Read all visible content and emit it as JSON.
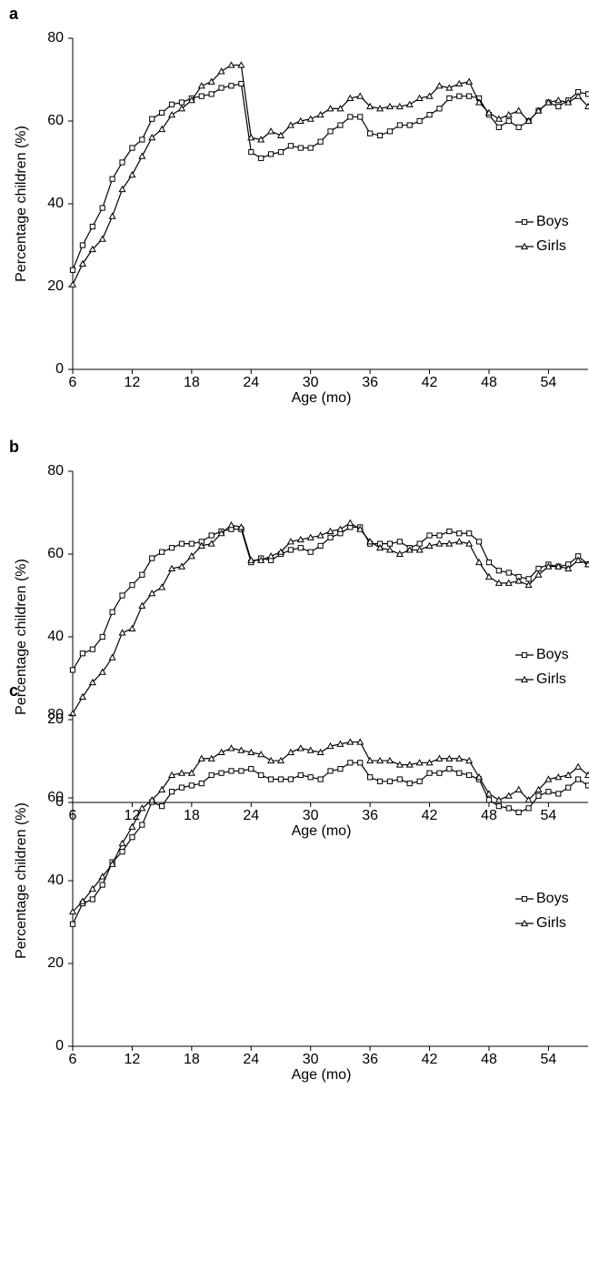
{
  "chart_data": [
    {
      "type": "line",
      "label": "a",
      "xlabel": "Age (mo)",
      "ylabel": "Percentage children (%)",
      "legend": "right",
      "x": [
        6,
        7,
        8,
        9,
        10,
        11,
        12,
        13,
        14,
        15,
        16,
        17,
        18,
        19,
        20,
        21,
        22,
        23,
        24,
        25,
        26,
        27,
        28,
        29,
        30,
        31,
        32,
        33,
        34,
        35,
        36,
        37,
        38,
        39,
        40,
        41,
        42,
        43,
        44,
        45,
        46,
        47,
        48,
        49,
        50,
        51,
        52,
        53,
        54,
        55,
        56,
        57,
        58
      ],
      "xlim": [
        6,
        58
      ],
      "xticks": [
        6,
        12,
        18,
        24,
        30,
        36,
        42,
        48,
        54
      ],
      "ylim": [
        0,
        80
      ],
      "yticks": [
        0,
        20,
        40,
        60,
        80
      ],
      "series": [
        {
          "name": "Boys",
          "color": "#000000",
          "marker": "square",
          "values": [
            24,
            30,
            34.5,
            39,
            46,
            50,
            53.5,
            55.5,
            60.5,
            62,
            64,
            64.5,
            65.5,
            66,
            66.5,
            68,
            68.5,
            69,
            52.5,
            51,
            52,
            52.5,
            54,
            53.5,
            53.5,
            55,
            57.5,
            59,
            61,
            61,
            57,
            56.5,
            57.5,
            59,
            59,
            60,
            61.5,
            63,
            65.5,
            66,
            66,
            65.5,
            61.5,
            58.5,
            60,
            58.5,
            60,
            62.5,
            64.5,
            63.5,
            65,
            67,
            66.5
          ]
        },
        {
          "name": "Girls",
          "color": "#000000",
          "marker": "triangle",
          "values": [
            20.5,
            25.5,
            29,
            31.5,
            37,
            43.5,
            47,
            51.5,
            56,
            58,
            61.5,
            63,
            65,
            68.5,
            69.5,
            72,
            73.5,
            73.5,
            56,
            55.5,
            57.5,
            56.5,
            59,
            60,
            60.5,
            61.5,
            63,
            63,
            65.5,
            66,
            63.5,
            63,
            63.5,
            63.5,
            64,
            65.5,
            66,
            68.5,
            68,
            69,
            69.5,
            64.5,
            62,
            60.5,
            61.5,
            62.5,
            60,
            62.5,
            64.5,
            65,
            64.5,
            66,
            63.5
          ]
        }
      ]
    },
    {
      "type": "line",
      "label": "b",
      "xlabel": "Age (mo)",
      "ylabel": "Percentage children (%)",
      "legend": "right",
      "x": [
        6,
        7,
        8,
        9,
        10,
        11,
        12,
        13,
        14,
        15,
        16,
        17,
        18,
        19,
        20,
        21,
        22,
        23,
        24,
        25,
        26,
        27,
        28,
        29,
        30,
        31,
        32,
        33,
        34,
        35,
        36,
        37,
        38,
        39,
        40,
        41,
        42,
        43,
        44,
        45,
        46,
        47,
        48,
        49,
        50,
        51,
        52,
        53,
        54,
        55,
        56,
        57,
        58
      ],
      "xlim": [
        6,
        58
      ],
      "xticks": [
        6,
        12,
        18,
        24,
        30,
        36,
        42,
        48,
        54
      ],
      "ylim": [
        0,
        80
      ],
      "yticks": [
        0,
        20,
        40,
        60,
        80
      ],
      "series": [
        {
          "name": "Boys",
          "color": "#000000",
          "marker": "square",
          "values": [
            32,
            36,
            37,
            40,
            46,
            50,
            52.5,
            55,
            59,
            60.5,
            61.5,
            62.5,
            62.5,
            63,
            64.5,
            65.5,
            66,
            66,
            58,
            59,
            58.5,
            60,
            61,
            61.5,
            60.5,
            62,
            64,
            65,
            66.5,
            66.5,
            62.5,
            62.5,
            62.5,
            63,
            61.5,
            62.5,
            64.5,
            64.5,
            65.5,
            65,
            65,
            63,
            58,
            56,
            55.5,
            54.5,
            54,
            56.5,
            57.5,
            57,
            57.5,
            59.5,
            57.5
          ]
        },
        {
          "name": "Girls",
          "color": "#000000",
          "marker": "triangle",
          "values": [
            21.5,
            25.5,
            29,
            31.5,
            35,
            41,
            42,
            47.5,
            50.5,
            52,
            56.5,
            57,
            59.5,
            62,
            62.5,
            65,
            67,
            66.5,
            58.5,
            58.5,
            59.5,
            60.5,
            63,
            63.5,
            64,
            64.5,
            65.5,
            66,
            67.5,
            66,
            63,
            61.5,
            61,
            60,
            61,
            61,
            62,
            62.5,
            62.5,
            63,
            62.5,
            58,
            54.5,
            53,
            53,
            53.5,
            52.5,
            55,
            57,
            57,
            56.5,
            58.5,
            57.5
          ]
        }
      ]
    },
    {
      "type": "line",
      "label": "c",
      "xlabel": "Age (mo)",
      "ylabel": "Percentage children (%)",
      "legend": "right",
      "x": [
        6,
        7,
        8,
        9,
        10,
        11,
        12,
        13,
        14,
        15,
        16,
        17,
        18,
        19,
        20,
        21,
        22,
        23,
        24,
        25,
        26,
        27,
        28,
        29,
        30,
        31,
        32,
        33,
        34,
        35,
        36,
        37,
        38,
        39,
        40,
        41,
        42,
        43,
        44,
        45,
        46,
        47,
        48,
        49,
        50,
        51,
        52,
        53,
        54,
        55,
        56,
        57,
        58
      ],
      "xlim": [
        6,
        58
      ],
      "xticks": [
        6,
        12,
        18,
        24,
        30,
        36,
        42,
        48,
        54
      ],
      "ylim": [
        0,
        80
      ],
      "yticks": [
        0,
        20,
        40,
        60,
        80
      ],
      "series": [
        {
          "name": "Boys",
          "color": "#000000",
          "marker": "square",
          "values": [
            29.5,
            34.5,
            35.5,
            39,
            44.5,
            47,
            50.5,
            53.5,
            59,
            58,
            61.5,
            62.5,
            63,
            63.5,
            65.5,
            66,
            66.5,
            66.5,
            67,
            65.5,
            64.5,
            64.5,
            64.5,
            65.5,
            65,
            64.5,
            66.5,
            67,
            68.5,
            68.5,
            65,
            64,
            64,
            64.5,
            63.5,
            64,
            66,
            66,
            67,
            66,
            65.5,
            64.5,
            59.5,
            58,
            57.5,
            56.5,
            57.5,
            60.5,
            61.5,
            61,
            62.5,
            64.5,
            63
          ]
        },
        {
          "name": "Girls",
          "color": "#000000",
          "marker": "triangle",
          "values": [
            32.5,
            35,
            38,
            41,
            44,
            49,
            53,
            57.5,
            59.5,
            62,
            65.5,
            66,
            66,
            69.5,
            69.5,
            71,
            72,
            71.5,
            71,
            70.5,
            69,
            69,
            71,
            72,
            71.5,
            71,
            72.5,
            73,
            73.5,
            73.5,
            69,
            69,
            69,
            68,
            68,
            68.5,
            68.5,
            69.5,
            69.5,
            69.5,
            69,
            65,
            61,
            59.5,
            60.5,
            62,
            59.5,
            62,
            64.5,
            65,
            65.5,
            67.5,
            65.5
          ]
        }
      ]
    }
  ]
}
